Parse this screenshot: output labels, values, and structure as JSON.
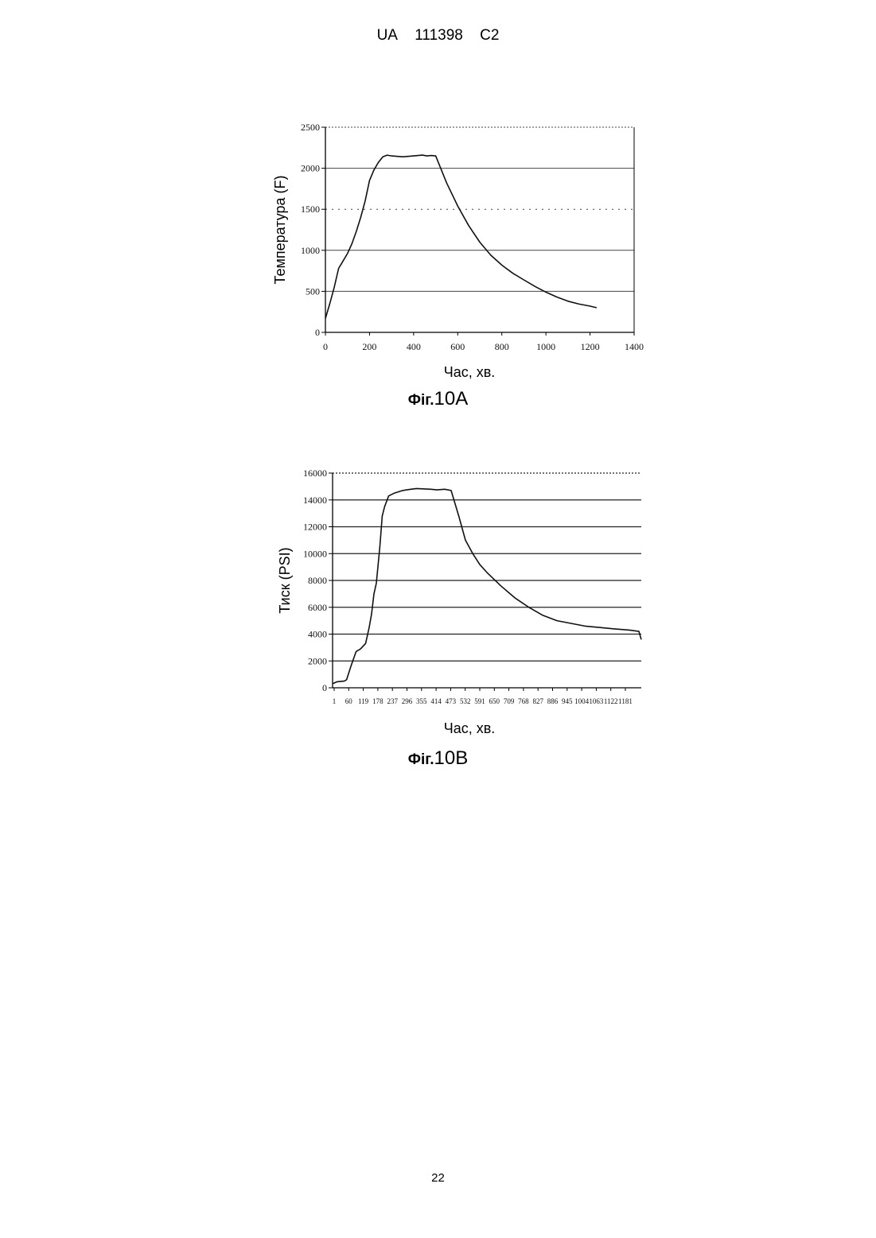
{
  "header": {
    "country": "UA",
    "number": "111398",
    "kind": "C2"
  },
  "page_number": "22",
  "figures": [
    {
      "caption_prefix": "Фіг.",
      "caption_number": "10A"
    },
    {
      "caption_prefix": "Фіг.",
      "caption_number": "10B"
    }
  ],
  "chart_data": [
    {
      "type": "line",
      "title": "",
      "xlabel": "Час, хв.",
      "ylabel": "Температура (F)",
      "xlim": [
        0,
        1400
      ],
      "ylim": [
        0,
        2500
      ],
      "x_ticks": [
        "0",
        "200",
        "400",
        "600",
        "800",
        "1000",
        "1200",
        "1400"
      ],
      "y_ticks": [
        "0",
        "500",
        "1000",
        "1500",
        "2000",
        "2500"
      ],
      "grid": true,
      "series": [
        {
          "x": [
            0,
            20,
            40,
            60,
            80,
            100,
            120,
            140,
            160,
            180,
            200,
            220,
            240,
            260,
            280,
            300,
            350,
            400,
            440,
            460,
            480,
            500,
            550,
            600,
            650,
            700,
            750,
            800,
            850,
            900,
            950,
            1000,
            1050,
            1100,
            1150,
            1200,
            1230
          ],
          "y": [
            170,
            350,
            550,
            780,
            870,
            960,
            1080,
            1230,
            1400,
            1600,
            1850,
            1980,
            2070,
            2140,
            2160,
            2150,
            2140,
            2150,
            2160,
            2150,
            2155,
            2150,
            1820,
            1540,
            1300,
            1100,
            940,
            820,
            720,
            640,
            560,
            490,
            430,
            380,
            345,
            320,
            300
          ]
        }
      ]
    },
    {
      "type": "line",
      "title": "",
      "xlabel": "Час, хв.",
      "ylabel": "Тиск (PSI)",
      "xlim": [
        1,
        1300
      ],
      "ylim": [
        0,
        16000
      ],
      "x_ticks": [
        "1",
        "60",
        "119",
        "178",
        "237",
        "296",
        "355",
        "414",
        "473",
        "532",
        "591",
        "650",
        "709",
        "768",
        "827",
        "886",
        "945",
        "1004",
        "1063",
        "1122",
        "1181"
      ],
      "y_ticks": [
        "0",
        "2000",
        "4000",
        "6000",
        "8000",
        "10000",
        "12000",
        "14000",
        "16000"
      ],
      "grid": true,
      "series": [
        {
          "x": [
            1,
            20,
            50,
            60,
            80,
            100,
            119,
            140,
            155,
            165,
            175,
            185,
            200,
            210,
            220,
            237,
            260,
            296,
            330,
            355,
            414,
            440,
            473,
            500,
            532,
            560,
            591,
            620,
            650,
            709,
            768,
            827,
            886,
            945,
            1004,
            1063,
            1122,
            1181,
            1250,
            1290,
            1300
          ],
          "y": [
            300,
            450,
            500,
            600,
            1700,
            2700,
            2900,
            3300,
            4500,
            5500,
            7000,
            7800,
            10500,
            12800,
            13500,
            14300,
            14500,
            14700,
            14800,
            14850,
            14800,
            14750,
            14800,
            14700,
            12800,
            11000,
            10000,
            9200,
            8600,
            7600,
            6700,
            6000,
            5400,
            5000,
            4800,
            4600,
            4500,
            4400,
            4300,
            4200,
            3600
          ]
        }
      ]
    }
  ]
}
